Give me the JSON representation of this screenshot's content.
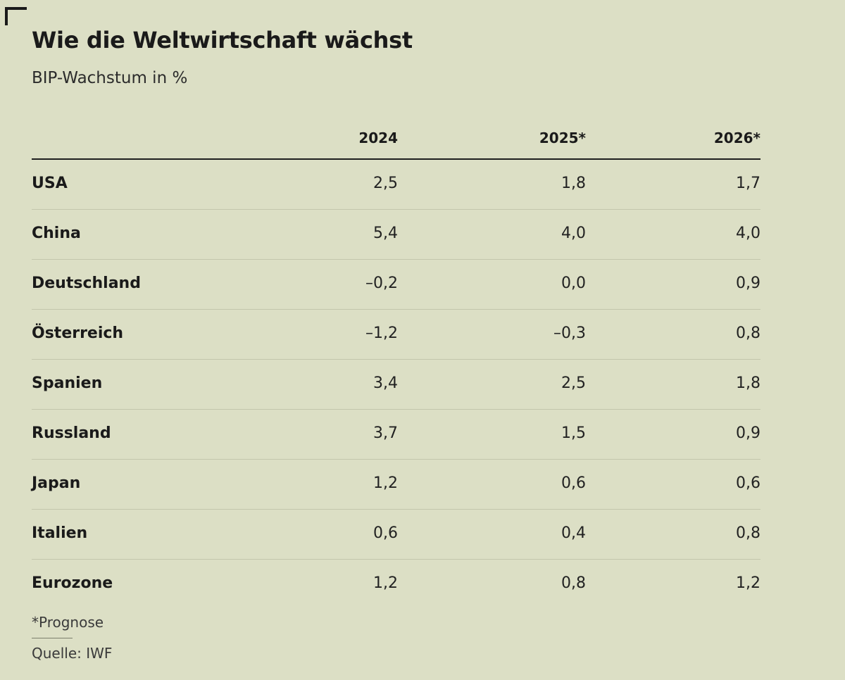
{
  "title": "Wie die Weltwirtschaft wächst",
  "subtitle": "BIP-Wachstum in %",
  "footnote": "*Prognose",
  "source": "Quelle: IWF",
  "colors": {
    "background": "#dcdfc5",
    "text": "#1a1a1a",
    "row_divider": "#c3c6ac"
  },
  "chart_data": {
    "type": "table",
    "columns": [
      "2024",
      "2025*",
      "2026*"
    ],
    "rows": [
      {
        "country": "USA",
        "values": [
          "2,5",
          "1,8",
          "1,7"
        ]
      },
      {
        "country": "China",
        "values": [
          "5,4",
          "4,0",
          "4,0"
        ]
      },
      {
        "country": "Deutschland",
        "values": [
          "–0,2",
          "0,0",
          "0,9"
        ]
      },
      {
        "country": "Österreich",
        "values": [
          "–1,2",
          "–0,3",
          "0,8"
        ]
      },
      {
        "country": "Spanien",
        "values": [
          "3,4",
          "2,5",
          "1,8"
        ]
      },
      {
        "country": "Russland",
        "values": [
          "3,7",
          "1,5",
          "0,9"
        ]
      },
      {
        "country": "Japan",
        "values": [
          "1,2",
          "0,6",
          "0,6"
        ]
      },
      {
        "country": "Italien",
        "values": [
          "0,6",
          "0,4",
          "0,8"
        ]
      },
      {
        "country": "Eurozone",
        "values": [
          "1,2",
          "0,8",
          "1,2"
        ]
      }
    ]
  }
}
